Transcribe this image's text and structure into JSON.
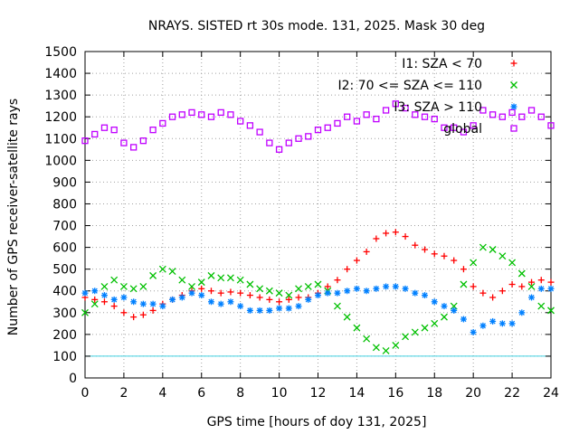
{
  "chart_data": {
    "type": "scatter",
    "title": "NRAYS. SISTED rt 30s mode. 131, 2025. Mask 30 deg",
    "xlabel": "GPS time [hours of doy 131, 2025]",
    "ylabel": "Number of GPS receiver-satellite rays",
    "xlim": [
      0,
      24
    ],
    "ylim": [
      0,
      1500
    ],
    "x_ticks": [
      0,
      2,
      4,
      6,
      8,
      10,
      12,
      14,
      16,
      18,
      20,
      22,
      24
    ],
    "y_ticks": [
      0,
      100,
      200,
      300,
      400,
      500,
      600,
      700,
      800,
      900,
      1000,
      1100,
      1200,
      1300,
      1400,
      1500
    ],
    "grid": true,
    "legend_position": "top-right",
    "reference_line": {
      "y": 100,
      "color": "#40d0e0"
    },
    "series": [
      {
        "name": "I1: SZA < 70",
        "marker": "+",
        "color": "#ff0000",
        "points": [
          [
            0,
            370
          ],
          [
            0.5,
            360
          ],
          [
            1,
            350
          ],
          [
            1.5,
            330
          ],
          [
            2,
            300
          ],
          [
            2.5,
            280
          ],
          [
            3,
            290
          ],
          [
            3.5,
            310
          ],
          [
            4,
            340
          ],
          [
            4.5,
            360
          ],
          [
            5,
            380
          ],
          [
            5.5,
            400
          ],
          [
            6,
            410
          ],
          [
            6.5,
            400
          ],
          [
            7,
            390
          ],
          [
            7.5,
            395
          ],
          [
            8,
            390
          ],
          [
            8.5,
            380
          ],
          [
            9,
            370
          ],
          [
            9.5,
            360
          ],
          [
            10,
            350
          ],
          [
            10.5,
            360
          ],
          [
            11,
            370
          ],
          [
            11.5,
            370
          ],
          [
            12,
            390
          ],
          [
            12.5,
            420
          ],
          [
            13,
            450
          ],
          [
            13.5,
            500
          ],
          [
            14,
            540
          ],
          [
            14.5,
            580
          ],
          [
            15,
            640
          ],
          [
            15.5,
            665
          ],
          [
            16,
            670
          ],
          [
            16.5,
            650
          ],
          [
            17,
            610
          ],
          [
            17.5,
            590
          ],
          [
            18,
            570
          ],
          [
            18.5,
            560
          ],
          [
            19,
            540
          ],
          [
            19.5,
            500
          ],
          [
            20,
            420
          ],
          [
            20.5,
            390
          ],
          [
            21,
            370
          ],
          [
            21.5,
            400
          ],
          [
            22,
            430
          ],
          [
            22.5,
            420
          ],
          [
            23,
            440
          ],
          [
            23.5,
            450
          ],
          [
            24,
            440
          ]
        ]
      },
      {
        "name": "I2: 70 <= SZA <= 110",
        "marker": "x",
        "color": "#00c000",
        "points": [
          [
            0,
            300
          ],
          [
            0.5,
            340
          ],
          [
            1,
            420
          ],
          [
            1.5,
            450
          ],
          [
            2,
            420
          ],
          [
            2.5,
            410
          ],
          [
            3,
            420
          ],
          [
            3.5,
            470
          ],
          [
            4,
            500
          ],
          [
            4.5,
            490
          ],
          [
            5,
            450
          ],
          [
            5.5,
            420
          ],
          [
            6,
            440
          ],
          [
            6.5,
            470
          ],
          [
            7,
            460
          ],
          [
            7.5,
            460
          ],
          [
            8,
            450
          ],
          [
            8.5,
            430
          ],
          [
            9,
            410
          ],
          [
            9.5,
            400
          ],
          [
            10,
            390
          ],
          [
            10.5,
            380
          ],
          [
            11,
            410
          ],
          [
            11.5,
            420
          ],
          [
            12,
            430
          ],
          [
            12.5,
            400
          ],
          [
            13,
            330
          ],
          [
            13.5,
            280
          ],
          [
            14,
            230
          ],
          [
            14.5,
            180
          ],
          [
            15,
            140
          ],
          [
            15.5,
            125
          ],
          [
            16,
            150
          ],
          [
            16.5,
            190
          ],
          [
            17,
            210
          ],
          [
            17.5,
            230
          ],
          [
            18,
            250
          ],
          [
            18.5,
            280
          ],
          [
            19,
            330
          ],
          [
            19.5,
            430
          ],
          [
            20,
            530
          ],
          [
            20.5,
            600
          ],
          [
            21,
            590
          ],
          [
            21.5,
            560
          ],
          [
            22,
            530
          ],
          [
            22.5,
            480
          ],
          [
            23,
            420
          ],
          [
            23.5,
            330
          ],
          [
            24,
            310
          ]
        ]
      },
      {
        "name": "I3: SZA > 110",
        "marker": "*",
        "color": "#0080ff",
        "points": [
          [
            0,
            390
          ],
          [
            0.5,
            400
          ],
          [
            1,
            380
          ],
          [
            1.5,
            360
          ],
          [
            2,
            370
          ],
          [
            2.5,
            350
          ],
          [
            3,
            340
          ],
          [
            3.5,
            340
          ],
          [
            4,
            330
          ],
          [
            4.5,
            360
          ],
          [
            5,
            370
          ],
          [
            5.5,
            390
          ],
          [
            6,
            380
          ],
          [
            6.5,
            350
          ],
          [
            7,
            340
          ],
          [
            7.5,
            350
          ],
          [
            8,
            330
          ],
          [
            8.5,
            310
          ],
          [
            9,
            310
          ],
          [
            9.5,
            310
          ],
          [
            10,
            320
          ],
          [
            10.5,
            320
          ],
          [
            11,
            330
          ],
          [
            11.5,
            360
          ],
          [
            12,
            380
          ],
          [
            12.5,
            390
          ],
          [
            13,
            390
          ],
          [
            13.5,
            400
          ],
          [
            14,
            410
          ],
          [
            14.5,
            400
          ],
          [
            15,
            410
          ],
          [
            15.5,
            420
          ],
          [
            16,
            420
          ],
          [
            16.5,
            410
          ],
          [
            17,
            390
          ],
          [
            17.5,
            380
          ],
          [
            18,
            350
          ],
          [
            18.5,
            330
          ],
          [
            19,
            310
          ],
          [
            19.5,
            270
          ],
          [
            20,
            210
          ],
          [
            20.5,
            240
          ],
          [
            21,
            260
          ],
          [
            21.5,
            250
          ],
          [
            22,
            250
          ],
          [
            22.5,
            300
          ],
          [
            23,
            370
          ],
          [
            23.5,
            410
          ],
          [
            24,
            410
          ]
        ]
      },
      {
        "name": "global",
        "marker": "square",
        "color": "#c000ff",
        "points": [
          [
            0,
            1090
          ],
          [
            0.5,
            1120
          ],
          [
            1,
            1150
          ],
          [
            1.5,
            1140
          ],
          [
            2,
            1080
          ],
          [
            2.5,
            1060
          ],
          [
            3,
            1090
          ],
          [
            3.5,
            1140
          ],
          [
            4,
            1170
          ],
          [
            4.5,
            1200
          ],
          [
            5,
            1210
          ],
          [
            5.5,
            1220
          ],
          [
            6,
            1210
          ],
          [
            6.5,
            1200
          ],
          [
            7,
            1220
          ],
          [
            7.5,
            1210
          ],
          [
            8,
            1180
          ],
          [
            8.5,
            1160
          ],
          [
            9,
            1130
          ],
          [
            9.5,
            1080
          ],
          [
            10,
            1050
          ],
          [
            10.5,
            1080
          ],
          [
            11,
            1100
          ],
          [
            11.5,
            1110
          ],
          [
            12,
            1140
          ],
          [
            12.5,
            1150
          ],
          [
            13,
            1170
          ],
          [
            13.5,
            1200
          ],
          [
            14,
            1180
          ],
          [
            14.5,
            1210
          ],
          [
            15,
            1190
          ],
          [
            15.5,
            1230
          ],
          [
            16,
            1260
          ],
          [
            16.5,
            1240
          ],
          [
            17,
            1210
          ],
          [
            17.5,
            1200
          ],
          [
            18,
            1190
          ],
          [
            18.5,
            1150
          ],
          [
            19,
            1150
          ],
          [
            19.5,
            1130
          ],
          [
            20,
            1160
          ],
          [
            20.5,
            1230
          ],
          [
            21,
            1210
          ],
          [
            21.5,
            1200
          ],
          [
            22,
            1220
          ],
          [
            22.5,
            1200
          ],
          [
            23,
            1230
          ],
          [
            23.5,
            1200
          ],
          [
            24,
            1160
          ]
        ]
      }
    ]
  }
}
